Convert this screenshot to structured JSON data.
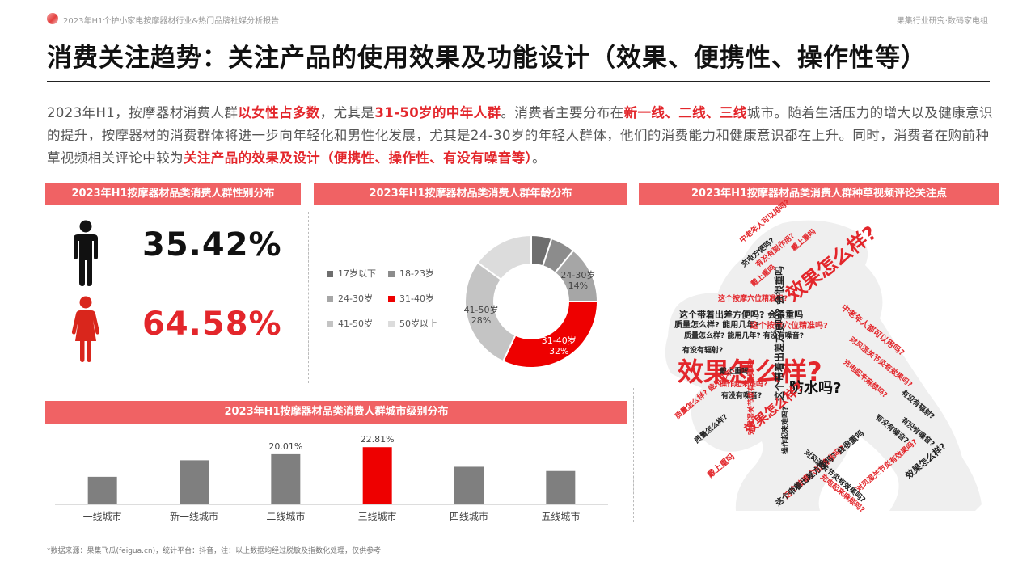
{
  "header": {
    "report_title": "2023年H1个护小家电按摩器材行业&热门品牌社媒分析报告",
    "brand": "果集行业研究·数码家电组"
  },
  "page_title": "消费关注趋势：关注产品的使用效果及功能设计（效果、便携性、操作性等）",
  "intro": {
    "segments": [
      {
        "text": "2023年H1，按摩器材消费人群",
        "hl": false
      },
      {
        "text": "以女性占多数",
        "hl": true
      },
      {
        "text": "，尤其是",
        "hl": false
      },
      {
        "text": "31-50岁的中年人群",
        "hl": true
      },
      {
        "text": "。消费者主要分布在",
        "hl": false
      },
      {
        "text": "新一线、二线、三线",
        "hl": true
      },
      {
        "text": "城市。随着生活压力的增大以及健康意识的提升，按摩器材的消费群体将进一步向年轻化和男性化发展，尤其是24-30岁的年轻人群体，他们的消费能力和健康意识都在上升。同时，消费者在购前种草视频相关评论中较为",
        "hl": false
      },
      {
        "text": "关注产品的效果及设计（便携性、操作性、有没有噪音等）",
        "hl": true
      },
      {
        "text": "。",
        "hl": false
      }
    ]
  },
  "sections": {
    "gender": "2023年H1按摩器材品类消费人群性别分布",
    "age": "2023年H1按摩器材品类消费人群年龄分布",
    "city": "2023年H1按摩器材品类消费人群城市级别分布",
    "comments": "2023年H1按摩器材品类消费人群种草视频评论关注点"
  },
  "colors": {
    "accent": "#e3262b",
    "section_bar": "#f06264",
    "gray_bar": "#7f7f7f",
    "male": "#111111",
    "female": "#d9261c"
  },
  "chart_data": [
    {
      "type": "pictograph",
      "categories": [
        "男性",
        "女性"
      ],
      "values": [
        35.42,
        64.58
      ],
      "labels": [
        "35.42%",
        "64.58%"
      ],
      "icons": [
        "male-icon",
        "female-icon"
      ]
    },
    {
      "type": "pie",
      "variant": "donut",
      "legend_position": "left",
      "categories": [
        "17岁以下",
        "18-23岁",
        "24-30岁",
        "31-40岁",
        "41-50岁",
        "50岁以上"
      ],
      "values": [
        5,
        6,
        14,
        32,
        28,
        15
      ],
      "colors": [
        "#6e6e6e",
        "#8c8c8c",
        "#a6a6a6",
        "#ee0000",
        "#c4c4c4",
        "#dcdcdc"
      ],
      "slice_labels": [
        {
          "name": "24-30岁",
          "value": "14%"
        },
        {
          "name": "31-40岁",
          "value": "32%"
        },
        {
          "name": "41-50岁",
          "value": "28%"
        }
      ]
    },
    {
      "type": "bar",
      "categories": [
        "一线城市",
        "新一线城市",
        "二线城市",
        "三线城市",
        "四线城市",
        "五线城市"
      ],
      "values": [
        11.0,
        17.6,
        20.01,
        22.81,
        15.0,
        13.3
      ],
      "value_labels": [
        "",
        "",
        "20.01%",
        "22.81%",
        "",
        ""
      ],
      "highlight_index": 3,
      "ylim": [
        0,
        30
      ],
      "grid": false
    }
  ],
  "word_cloud": {
    "words": [
      {
        "text": "效果怎么样?",
        "size": 32,
        "color": "#e3262b",
        "x": 20,
        "y": 178,
        "rot": 0
      },
      {
        "text": "效果怎么样?",
        "size": 24,
        "color": "#e3262b",
        "x": 150,
        "y": 92,
        "rot": -38
      },
      {
        "text": "防水吗?",
        "size": 18,
        "color": "#111111",
        "x": 158,
        "y": 206,
        "rot": 0
      },
      {
        "text": "这个带着出差方便吗? 会很重吗",
        "size": 11,
        "color": "#222222",
        "x": 22,
        "y": 118,
        "rot": 0
      },
      {
        "text": "质量怎么样? 能用几年?",
        "size": 10,
        "color": "#222222",
        "x": 16,
        "y": 132,
        "rot": 0
      },
      {
        "text": "这个按摩穴位精准吗?",
        "size": 10,
        "color": "#e3262b",
        "x": 110,
        "y": 133,
        "rot": 0
      },
      {
        "text": "质量怎么样? 能用几年? 有没有噪音?",
        "size": 9,
        "color": "#222222",
        "x": 28,
        "y": 146,
        "rot": 0
      },
      {
        "text": "这个按摩穴位精准吗?",
        "size": 9,
        "color": "#e3262b",
        "x": 70,
        "y": 100,
        "rot": 0
      },
      {
        "text": "中老年人都可以用吗?",
        "size": 10,
        "color": "#e3262b",
        "x": 226,
        "y": 110,
        "rot": 38
      },
      {
        "text": "对风湿关节炎有效果吗?",
        "size": 9,
        "color": "#e3262b",
        "x": 236,
        "y": 150,
        "rot": 38
      },
      {
        "text": "充电起来麻烦吗?",
        "size": 9,
        "color": "#e3262b",
        "x": 228,
        "y": 178,
        "rot": 40
      },
      {
        "text": "有没有辐射?",
        "size": 9,
        "color": "#222222",
        "x": 300,
        "y": 216,
        "rot": 40
      },
      {
        "text": "有没有噪音?",
        "size": 9,
        "color": "#222222",
        "x": 268,
        "y": 246,
        "rot": 40
      },
      {
        "text": "中老年人可以用吗?",
        "size": 9,
        "color": "#e3262b",
        "x": 96,
        "y": 30,
        "rot": -40
      },
      {
        "text": "充电方便吗?",
        "size": 9,
        "color": "#222222",
        "x": 98,
        "y": 60,
        "rot": -40
      },
      {
        "text": "有没有副作用?",
        "size": 9,
        "color": "#e3262b",
        "x": 116,
        "y": 60,
        "rot": -40
      },
      {
        "text": "戴上重吗",
        "size": 9,
        "color": "#e3262b",
        "x": 110,
        "y": 84,
        "rot": -40
      },
      {
        "text": "戴上重吗",
        "size": 9,
        "color": "#222222",
        "x": 72,
        "y": 190,
        "rot": 0
      },
      {
        "text": "操作起来难吗?",
        "size": 9,
        "color": "#e3262b",
        "x": 72,
        "y": 206,
        "rot": 0
      },
      {
        "text": "有没有噪音?",
        "size": 9,
        "color": "#222222",
        "x": 74,
        "y": 220,
        "rot": 0
      },
      {
        "text": "这个带着出差方便吗? 会很重吗",
        "size": 12,
        "color": "#222222",
        "x": 140,
        "y": 230,
        "rot": -90
      },
      {
        "text": "对风湿关节炎有效果吗?",
        "size": 9,
        "color": "#e3262b",
        "x": 108,
        "y": 272,
        "rot": -90
      },
      {
        "text": "效果怎么样?",
        "size": 16,
        "color": "#e3262b",
        "x": 100,
        "y": 262,
        "rot": -40
      },
      {
        "text": "操作起来难吗?",
        "size": 9,
        "color": "#222222",
        "x": 150,
        "y": 296,
        "rot": -90
      },
      {
        "text": "质量怎么样?",
        "size": 9,
        "color": "#222222",
        "x": 40,
        "y": 278,
        "rot": -40
      },
      {
        "text": "戴上重吗",
        "size": 10,
        "color": "#e3262b",
        "x": 56,
        "y": 320,
        "rot": -40
      },
      {
        "text": "这个按摩穴位精准吗?",
        "size": 10,
        "color": "#e3262b",
        "x": 150,
        "y": 346,
        "rot": -40
      },
      {
        "text": "这个带着出差方便吗? 会很重吗",
        "size": 10,
        "color": "#222222",
        "x": 140,
        "y": 355,
        "rot": -40
      },
      {
        "text": "对风湿关节炎有效果吗?",
        "size": 9,
        "color": "#e3262b",
        "x": 240,
        "y": 338,
        "rot": -40
      },
      {
        "text": "效果怎么样?",
        "size": 11,
        "color": "#222222",
        "x": 300,
        "y": 320,
        "rot": -40
      },
      {
        "text": "对风湿关节炎有效果吗?",
        "size": 9,
        "color": "#222222",
        "x": 180,
        "y": 290,
        "rot": 40
      },
      {
        "text": "充电起来麻烦吗?",
        "size": 9,
        "color": "#e3262b",
        "x": 200,
        "y": 320,
        "rot": 40
      },
      {
        "text": "有没有噪音?",
        "size": 9,
        "color": "#222222",
        "x": 300,
        "y": 250,
        "rot": 40
      },
      {
        "text": "质量怎么样? 能用几年?",
        "size": 9,
        "color": "#e3262b",
        "x": 16,
        "y": 248,
        "rot": -40
      },
      {
        "text": "戴上重吗",
        "size": 9,
        "color": "#e3262b",
        "x": 160,
        "y": 40,
        "rot": -40
      },
      {
        "text": "有没有辐射?",
        "size": 9,
        "color": "#222222",
        "x": 26,
        "y": 164,
        "rot": 0
      }
    ]
  },
  "footnote": "*数据来源：果集飞瓜(feigua.cn)，统计平台：抖音，注：以上数据均经过脱敏及指数化处理，仅供参考"
}
